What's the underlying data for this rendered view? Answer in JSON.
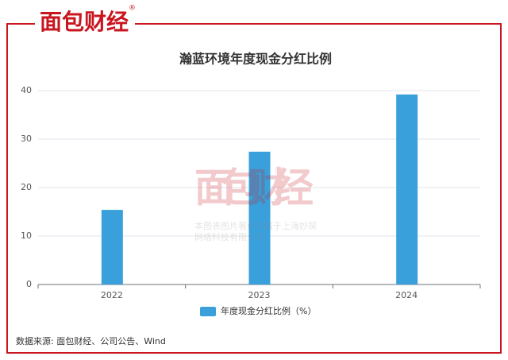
{
  "brand": {
    "logo": "面包财经",
    "mark": "®"
  },
  "chart_data": {
    "type": "bar",
    "title": "瀚蓝环境年度现金分红比例",
    "categories": [
      "2022",
      "2023",
      "2024"
    ],
    "series": [
      {
        "name": "年度现金分红比例（%）",
        "color": "#3aa0dc",
        "values": [
          15.4,
          27.4,
          39.2
        ]
      }
    ],
    "ylim": [
      0,
      40
    ],
    "yticks": [
      0,
      10,
      20,
      30,
      40
    ],
    "grid": true
  },
  "watermark": {
    "logo": "面包财经",
    "mark": "®",
    "lines": [
      "本图表图片著作权属于上海妙探",
      "网络科技有限公司"
    ]
  },
  "source": "数据来源: 面包财经、公司公告、Wind"
}
